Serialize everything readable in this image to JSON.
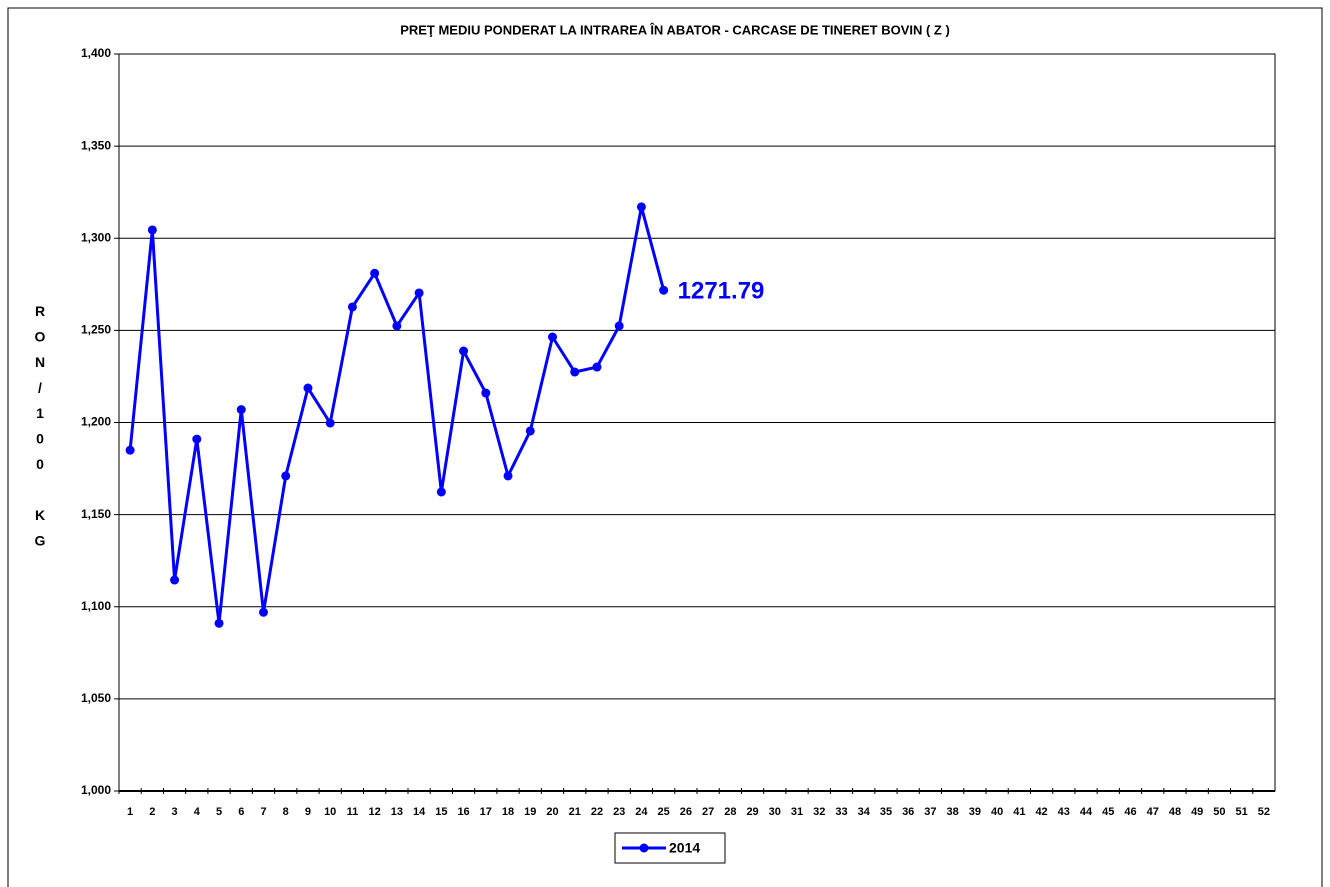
{
  "chart_data": {
    "type": "line",
    "title": "PREŢ MEDIU PONDERAT LA INTRAREA ÎN ABATOR - CARCASE DE TINERET BOVIN ( Z )",
    "y_label": "RON/100 KG",
    "categories": [
      "1",
      "2",
      "3",
      "4",
      "5",
      "6",
      "7",
      "8",
      "9",
      "10",
      "11",
      "12",
      "13",
      "14",
      "15",
      "16",
      "17",
      "18",
      "19",
      "20",
      "21",
      "22",
      "23",
      "24",
      "25",
      "26",
      "27",
      "28",
      "29",
      "30",
      "31",
      "32",
      "33",
      "34",
      "35",
      "36",
      "37",
      "38",
      "39",
      "40",
      "41",
      "42",
      "43",
      "44",
      "45",
      "46",
      "47",
      "48",
      "49",
      "50",
      "51",
      "52"
    ],
    "series": [
      {
        "name": "2014",
        "color": "#0000ff",
        "values": [
          1185,
          1304.5,
          1114.5,
          1191,
          1091,
          1207,
          1097,
          1171,
          1218.7,
          1199.7,
          1262.7,
          1281,
          1252.4,
          1270.3,
          1162.3,
          1238.8,
          1216,
          1171,
          1195.4,
          1246.4,
          1227.4,
          1230.1,
          1252.4,
          1317,
          1271.79,
          null,
          null,
          null,
          null,
          null,
          null,
          null,
          null,
          null,
          null,
          null,
          null,
          null,
          null,
          null,
          null,
          null,
          null,
          null,
          null,
          null,
          null,
          null,
          null,
          null,
          null,
          null
        ],
        "value_labels": [
          null,
          null,
          null,
          null,
          null,
          null,
          null,
          null,
          null,
          null,
          null,
          null,
          null,
          null,
          null,
          null,
          null,
          null,
          null,
          null,
          null,
          null,
          null,
          null,
          "1271.79",
          null,
          null,
          null,
          null,
          null,
          null,
          null,
          null,
          null,
          null,
          null,
          null,
          null,
          null,
          null,
          null,
          null,
          null,
          null,
          null,
          null,
          null,
          null,
          null,
          null,
          null,
          null
        ]
      }
    ],
    "ylim": [
      1000,
      1400
    ],
    "yticks": [
      {
        "value": 1000,
        "label": "1,000"
      },
      {
        "value": 1050,
        "label": "1,050"
      },
      {
        "value": 1100,
        "label": "1,100"
      },
      {
        "value": 1150,
        "label": "1,150"
      },
      {
        "value": 1200,
        "label": "1,200"
      },
      {
        "value": 1250,
        "label": "1,250"
      },
      {
        "value": 1300,
        "label": "1,300"
      },
      {
        "value": 1350,
        "label": "1,350"
      },
      {
        "value": 1400,
        "label": "1,400"
      }
    ],
    "grid": true,
    "legend": "bottom"
  }
}
